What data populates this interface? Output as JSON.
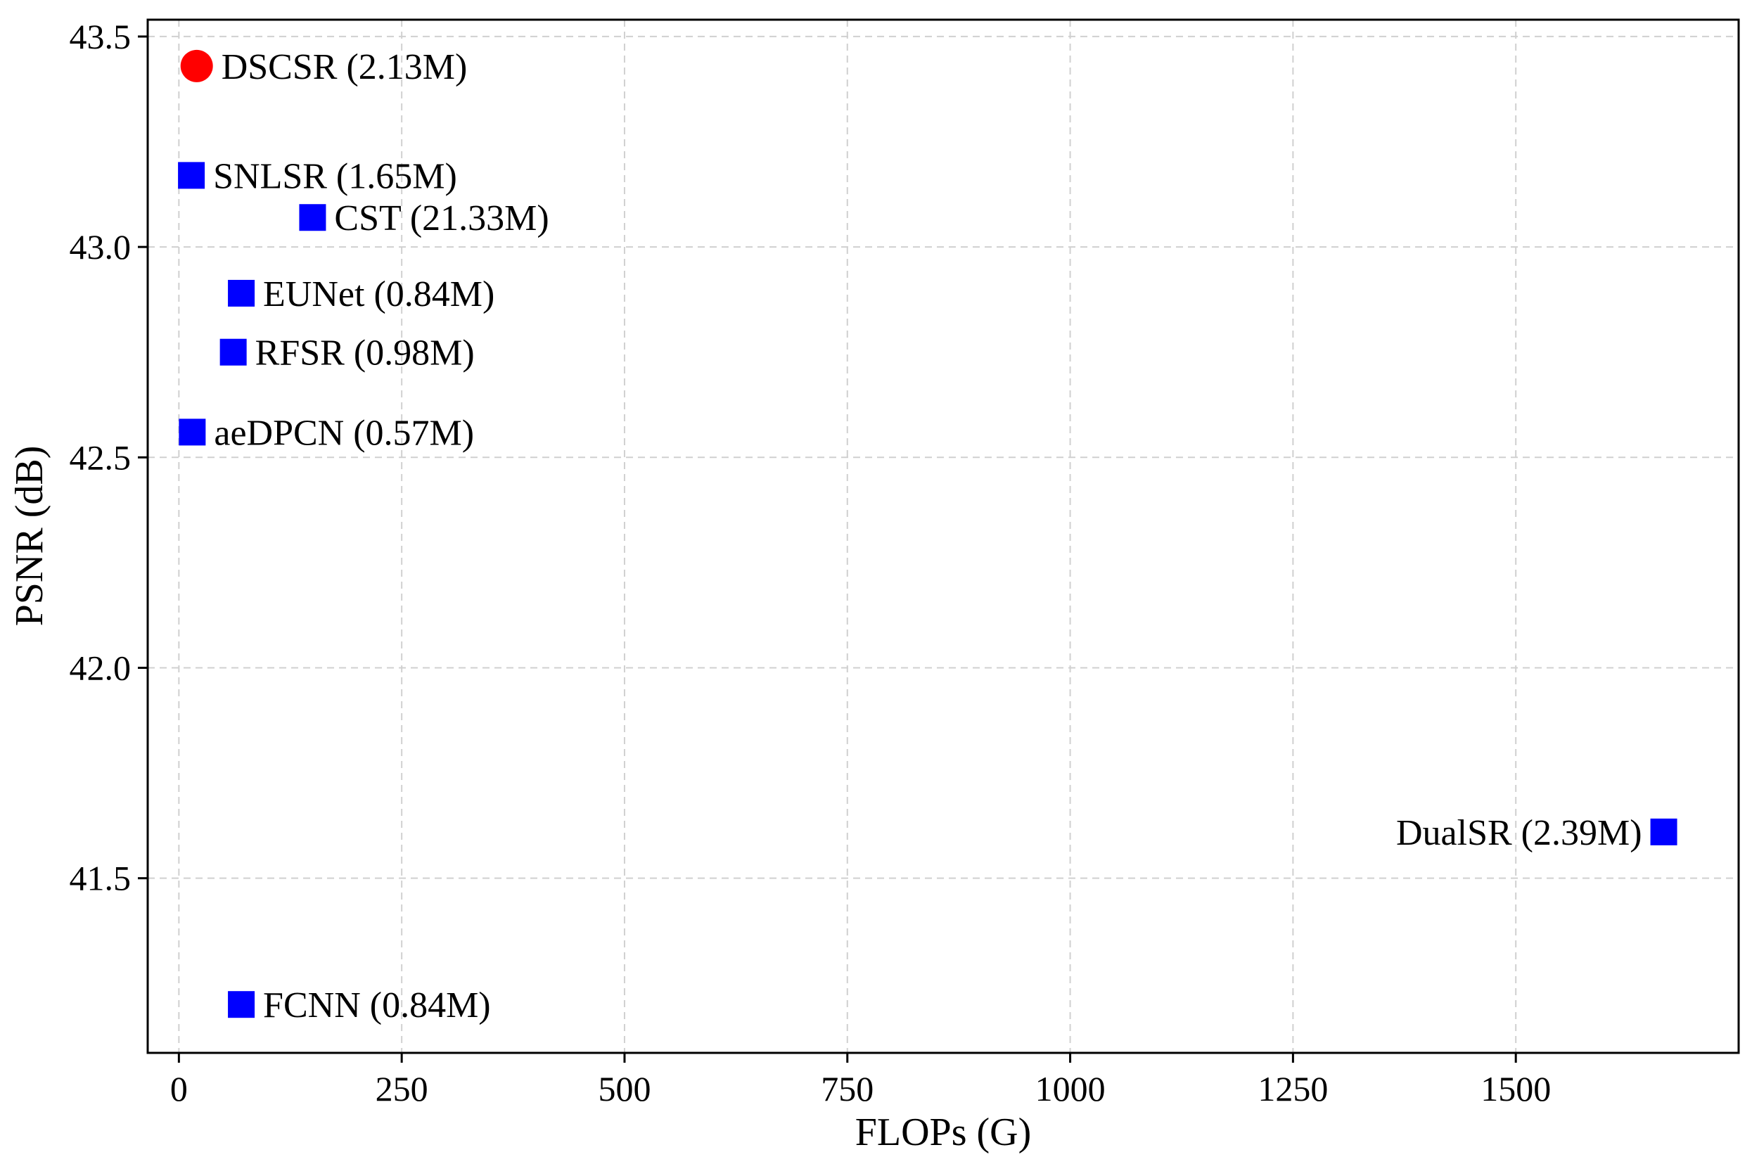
{
  "chart_data": {
    "type": "scatter",
    "xlabel": "FLOPs (G)",
    "ylabel": "PSNR (dB)",
    "xlim": [
      -35,
      1750
    ],
    "ylim": [
      41.085,
      43.54
    ],
    "xticks": [
      0,
      250,
      500,
      750,
      1000,
      1250,
      1500
    ],
    "yticks": [
      41.5,
      42.0,
      42.5,
      43.0,
      43.5
    ],
    "grid": true,
    "points": [
      {
        "label": "DSCSR (2.13M)",
        "x": 20,
        "y": 43.43,
        "marker": "circle",
        "color": "#ff0000",
        "label_side": "right"
      },
      {
        "label": "SNLSR (1.65M)",
        "x": 14,
        "y": 43.17,
        "marker": "square",
        "color": "#0000ff",
        "label_side": "right"
      },
      {
        "label": "CST (21.33M)",
        "x": 150,
        "y": 43.07,
        "marker": "square",
        "color": "#0000ff",
        "label_side": "right"
      },
      {
        "label": "EUNet (0.84M)",
        "x": 70,
        "y": 42.89,
        "marker": "square",
        "color": "#0000ff",
        "label_side": "right"
      },
      {
        "label": "RFSR (0.98M)",
        "x": 61,
        "y": 42.75,
        "marker": "square",
        "color": "#0000ff",
        "label_side": "right"
      },
      {
        "label": "aeDPCN (0.57M)",
        "x": 15,
        "y": 42.56,
        "marker": "square",
        "color": "#0000ff",
        "label_side": "right"
      },
      {
        "label": "DualSR (2.39M)",
        "x": 1666,
        "y": 41.61,
        "marker": "square",
        "color": "#0000ff",
        "label_side": "left"
      },
      {
        "label": "FCNN (0.84M)",
        "x": 70,
        "y": 41.2,
        "marker": "square",
        "color": "#0000ff",
        "label_side": "right"
      }
    ]
  }
}
